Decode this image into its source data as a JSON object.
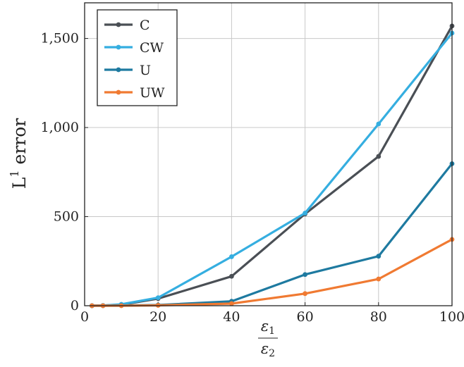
{
  "chart_data": {
    "type": "line",
    "title": "",
    "xlabel": {
      "numerator": "ε",
      "numerator_sub": "1",
      "denominator": "ε",
      "denominator_sub": "2"
    },
    "ylabel": {
      "base": "L",
      "sup": "1",
      "rest": " error"
    },
    "xlim": [
      0,
      100
    ],
    "ylim": [
      0,
      1700
    ],
    "x_ticks": [
      0,
      20,
      40,
      60,
      80,
      100
    ],
    "x_tick_labels": [
      "0",
      "20",
      "40",
      "60",
      "80",
      "100"
    ],
    "y_ticks": [
      0,
      500,
      1000,
      1500
    ],
    "y_tick_labels": [
      "0",
      "500",
      "1,000",
      "1,500"
    ],
    "grid": true,
    "legend_position": "top-left",
    "series": [
      {
        "name": "C",
        "color": "#4a4f55",
        "x": [
          2,
          5,
          10,
          20,
          40,
          60,
          80,
          100
        ],
        "y": [
          0,
          1,
          6,
          40,
          165,
          515,
          838,
          1570
        ]
      },
      {
        "name": "CW",
        "color": "#35aee0",
        "x": [
          2,
          5,
          10,
          20,
          40,
          60,
          80,
          100
        ],
        "y": [
          0,
          1,
          8,
          45,
          275,
          520,
          1020,
          1530
        ]
      },
      {
        "name": "U",
        "color": "#1e7aa0",
        "x": [
          2,
          5,
          10,
          20,
          40,
          60,
          80,
          100
        ],
        "y": [
          0,
          0,
          1,
          4,
          25,
          175,
          278,
          797
        ]
      },
      {
        "name": "UW",
        "color": "#f07a32",
        "x": [
          2,
          5,
          10,
          20,
          40,
          60,
          80,
          100
        ],
        "y": [
          0,
          0,
          0,
          2,
          12,
          68,
          150,
          372
        ]
      }
    ]
  }
}
